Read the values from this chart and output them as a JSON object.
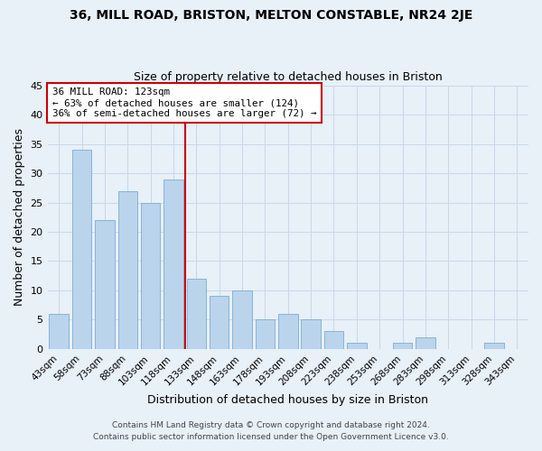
{
  "title": "36, MILL ROAD, BRISTON, MELTON CONSTABLE, NR24 2JE",
  "subtitle": "Size of property relative to detached houses in Briston",
  "xlabel": "Distribution of detached houses by size in Briston",
  "ylabel": "Number of detached properties",
  "bar_labels": [
    "43sqm",
    "58sqm",
    "73sqm",
    "88sqm",
    "103sqm",
    "118sqm",
    "133sqm",
    "148sqm",
    "163sqm",
    "178sqm",
    "193sqm",
    "208sqm",
    "223sqm",
    "238sqm",
    "253sqm",
    "268sqm",
    "283sqm",
    "298sqm",
    "313sqm",
    "328sqm",
    "343sqm"
  ],
  "bar_values": [
    6,
    34,
    22,
    27,
    25,
    29,
    12,
    9,
    10,
    5,
    6,
    5,
    3,
    1,
    0,
    1,
    2,
    0,
    0,
    1,
    0
  ],
  "bar_color": "#bad4ec",
  "bar_edge_color": "#7aadd4",
  "vline_x": 5.5,
  "vline_color": "#cc0000",
  "annotation_text": "36 MILL ROAD: 123sqm\n← 63% of detached houses are smaller (124)\n36% of semi-detached houses are larger (72) →",
  "annotation_box_color": "#ffffff",
  "annotation_box_edge_color": "#cc0000",
  "ylim": [
    0,
    45
  ],
  "yticks": [
    0,
    5,
    10,
    15,
    20,
    25,
    30,
    35,
    40,
    45
  ],
  "grid_color": "#c8d8e8",
  "background_color": "#e8f0f8",
  "footer_line1": "Contains HM Land Registry data © Crown copyright and database right 2024.",
  "footer_line2": "Contains public sector information licensed under the Open Government Licence v3.0."
}
